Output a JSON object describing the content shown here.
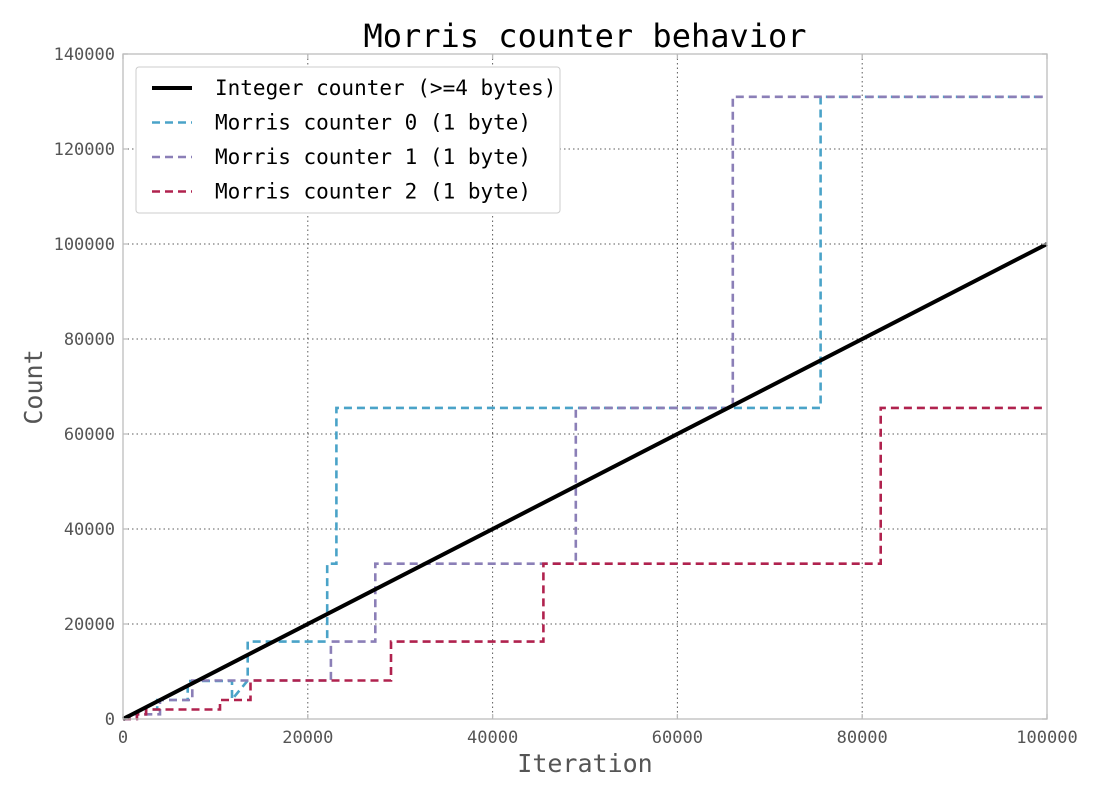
{
  "chart_data": {
    "type": "line",
    "title": "Morris counter behavior",
    "xlabel": "Iteration",
    "ylabel": "Count",
    "xlim": [
      0,
      100000
    ],
    "ylim": [
      0,
      140000
    ],
    "x_ticks": [
      "0",
      "20000",
      "40000",
      "60000",
      "80000",
      "100000"
    ],
    "y_ticks": [
      "0",
      "20000",
      "40000",
      "60000",
      "80000",
      "100000",
      "120000",
      "140000"
    ],
    "grid": true,
    "legend_position": "top-left",
    "series": [
      {
        "name": "Integer counter (>=4 bytes)",
        "style": "solid",
        "color": "#000000",
        "x": [
          0,
          100000
        ],
        "y": [
          0,
          100000
        ]
      },
      {
        "name": "Morris counter 0 (1 byte)",
        "style": "dashed",
        "color": "#4aa3c8",
        "x": [
          0,
          1000,
          1000,
          2500,
          2500,
          3700,
          3700,
          7000,
          7000,
          11800,
          11800,
          13500,
          13500,
          22100,
          22100,
          23100,
          23100,
          75500,
          75500,
          100000
        ],
        "y": [
          0,
          0,
          1000,
          1000,
          2000,
          2000,
          4000,
          4000,
          8000,
          8000,
          4100,
          8100,
          16300,
          16300,
          32700,
          32700,
          65500,
          65500,
          131000,
          131000
        ]
      },
      {
        "name": "Morris counter 1 (1 byte)",
        "style": "dashed",
        "color": "#8b7fb7",
        "x": [
          0,
          1500,
          1500,
          4000,
          4000,
          7500,
          7500,
          22500,
          22500,
          27300,
          27300,
          49000,
          49000,
          66000,
          66000,
          100000
        ],
        "y": [
          0,
          0,
          1000,
          1000,
          4000,
          4000,
          8100,
          8100,
          16300,
          16300,
          32700,
          32700,
          65500,
          65500,
          131000,
          131000
        ]
      },
      {
        "name": "Morris counter 2 (1 byte)",
        "style": "dashed",
        "color": "#b0224e",
        "x": [
          0,
          1500,
          1500,
          2500,
          2500,
          10500,
          10500,
          13800,
          13800,
          29000,
          29000,
          45500,
          45500,
          82000,
          82000,
          100000
        ],
        "y": [
          0,
          0,
          1000,
          1000,
          2000,
          2000,
          4000,
          4000,
          8100,
          8100,
          16300,
          16300,
          32700,
          32700,
          65500,
          65500
        ]
      }
    ]
  }
}
